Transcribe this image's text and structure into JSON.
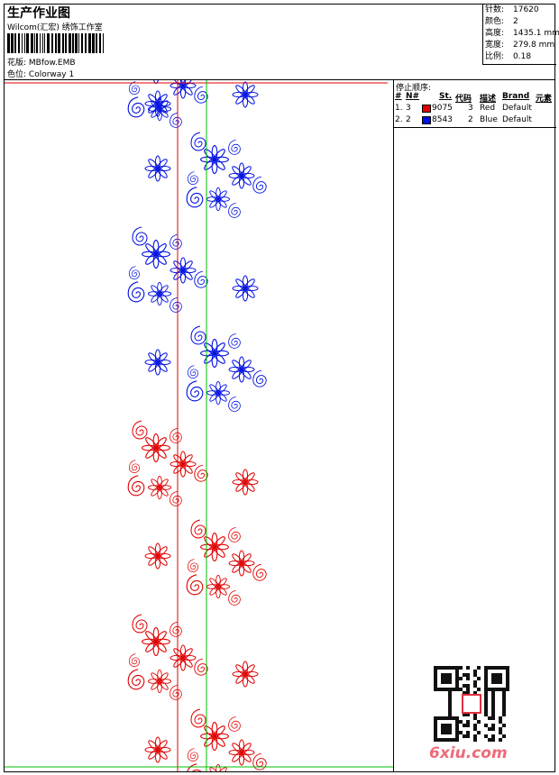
{
  "header": {
    "title": "生产作业图",
    "studio": "Wilcom(汇宏) 绣饰工作室",
    "design": {
      "label": "花版:",
      "value": "MBfow.EMB"
    },
    "colorway": {
      "label": "色位:",
      "value": "Colorway 1"
    }
  },
  "info": [
    {
      "label": "针数:",
      "value": 17620
    },
    {
      "label": "颜色:",
      "value": 2
    },
    {
      "label": "高度:",
      "value": "1435.1 mm"
    },
    {
      "label": "宽度:",
      "value": "279.8 mm"
    },
    {
      "label": "比例:",
      "value": 0.18
    }
  ],
  "stop_sequence": {
    "title": "停止顺序:",
    "columns": [
      "#",
      "N#",
      "St.",
      "代码",
      "描述",
      "Brand",
      "元素"
    ],
    "rows": [
      {
        "index": "1.",
        "needle": 3,
        "color": "#e00000",
        "stitches": 9075,
        "code": 3,
        "description": "Red",
        "brand": "Default"
      },
      {
        "index": "2.",
        "needle": 2,
        "color": "#0010e0",
        "stitches": 8543,
        "code": 2,
        "description": "Blue",
        "brand": "Default"
      }
    ]
  },
  "watermark": "6xiu.com"
}
